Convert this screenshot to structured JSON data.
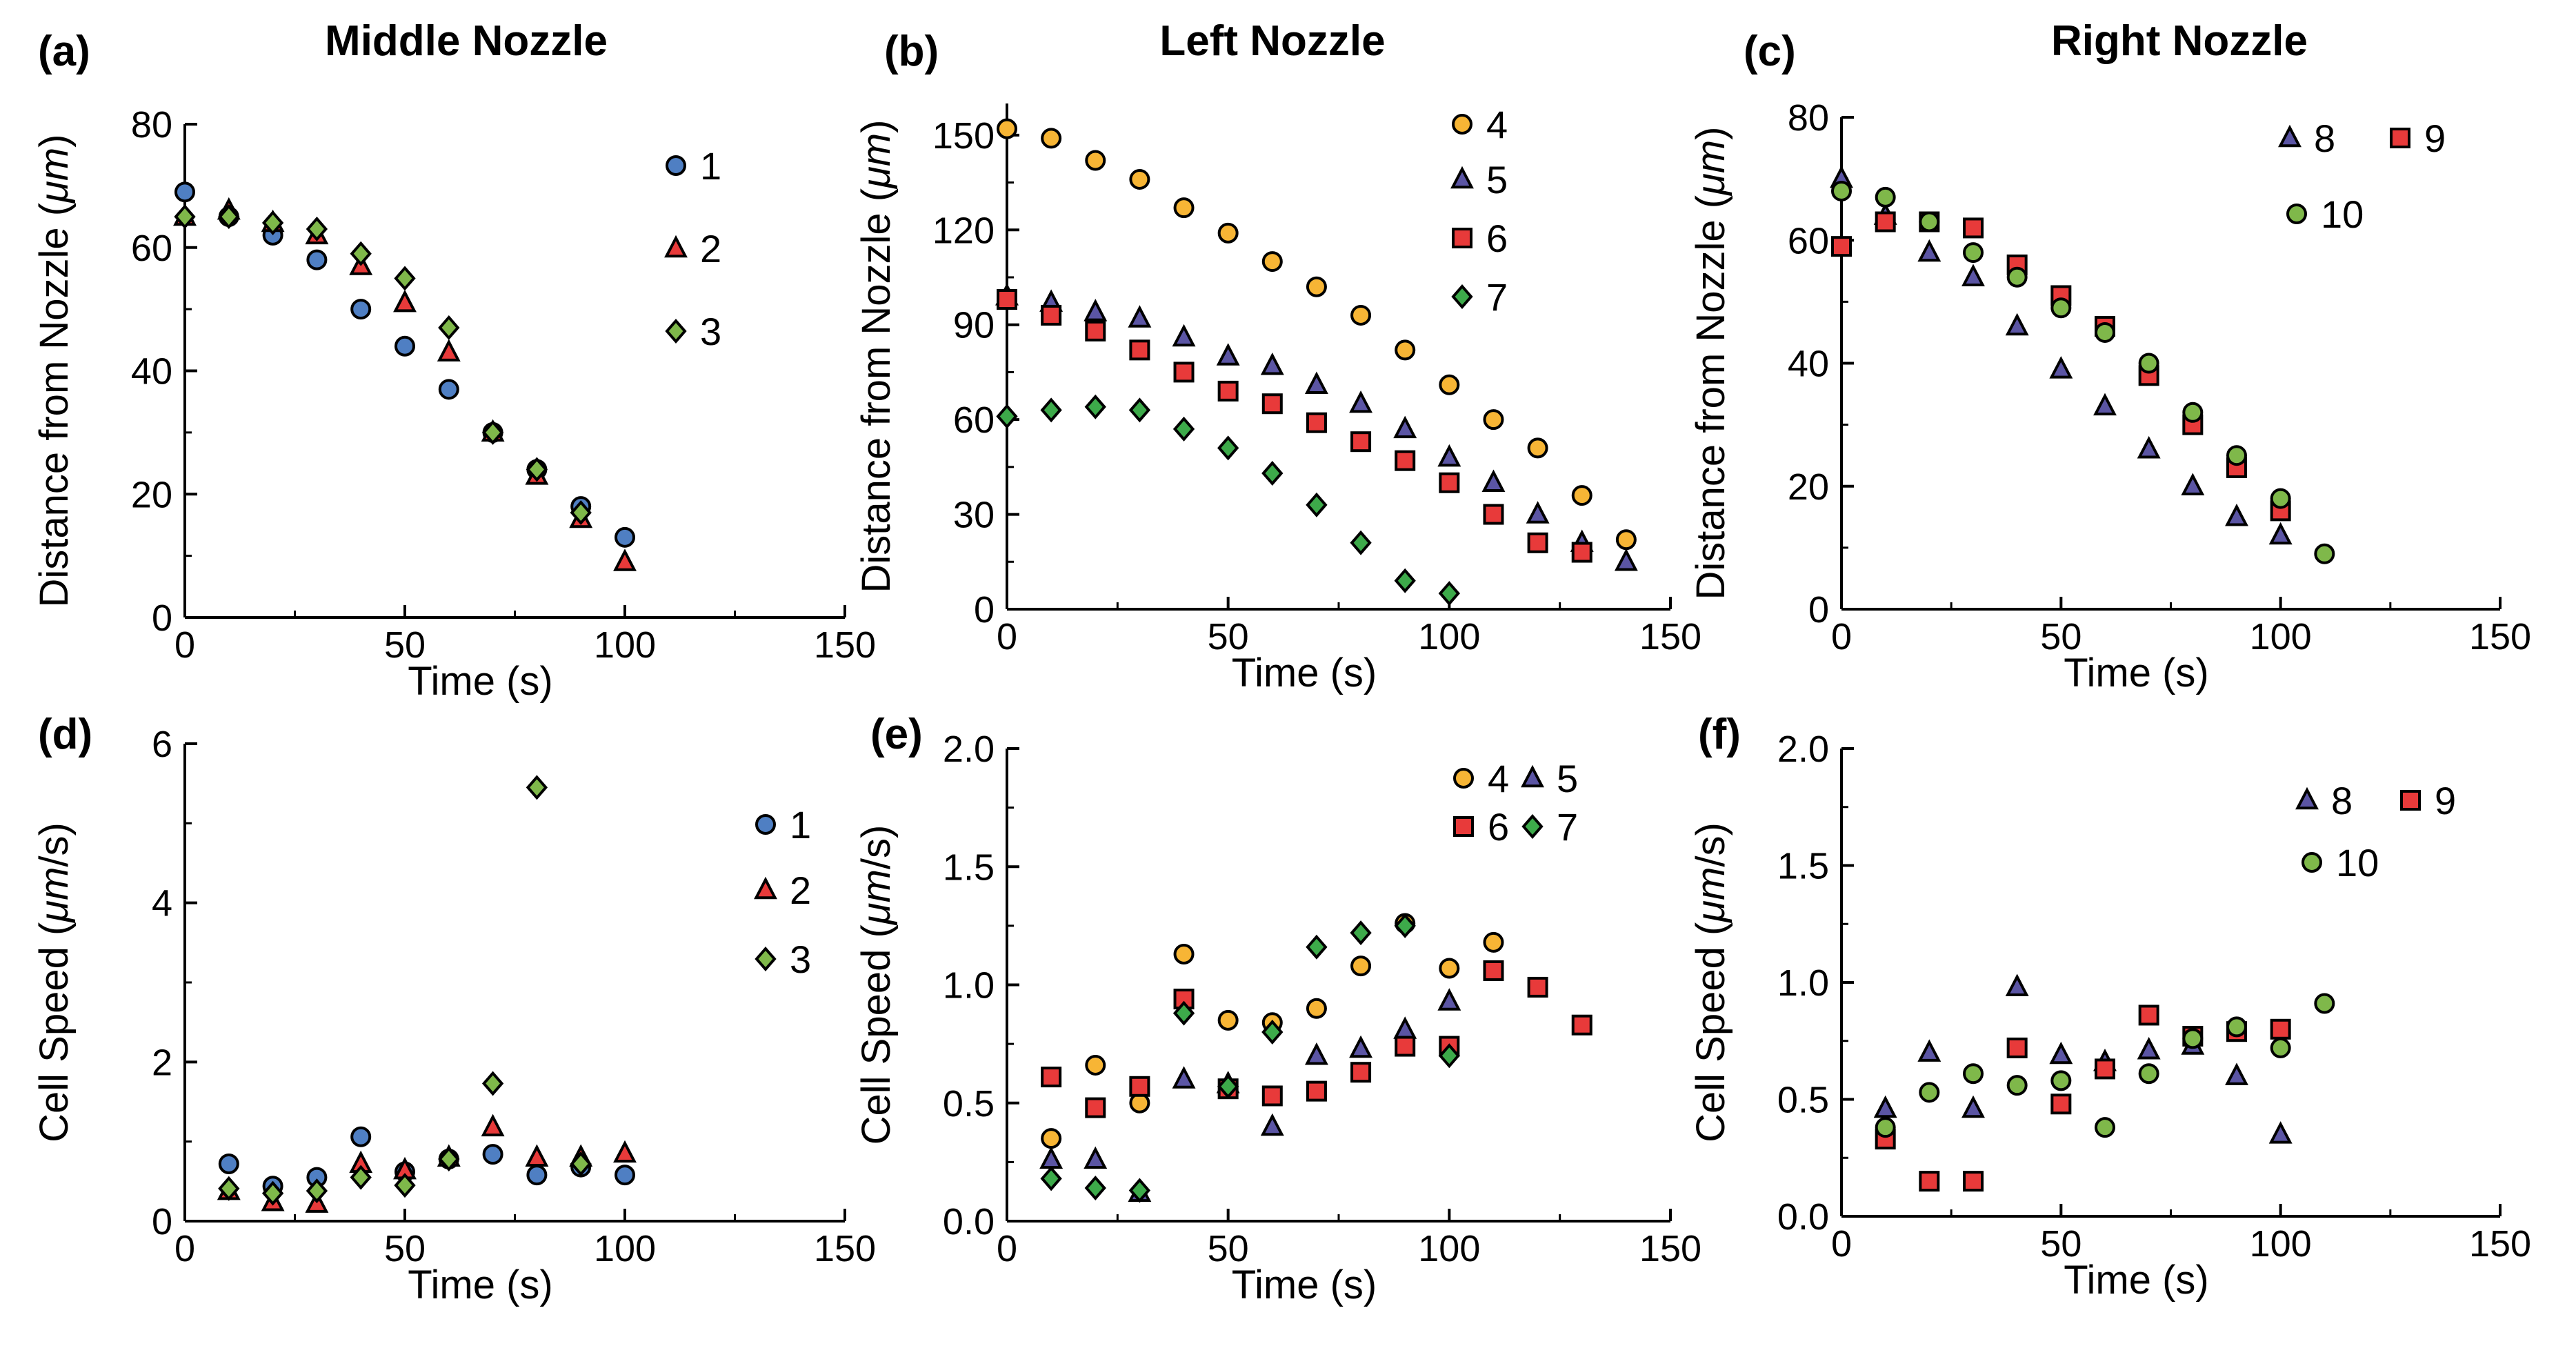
{
  "colors": {
    "series_1": "#4f7fc3",
    "series_2": "#e83a3a",
    "series_3": "#7fb84a",
    "series_4": "#f7b535",
    "series_5": "#5b55a4",
    "series_6": "#e83a3a",
    "series_7": "#3daa4a",
    "series_8": "#5b55a4",
    "series_9": "#e83a3a",
    "series_10": "#7fb84a",
    "axis": "#000000",
    "background": "#ffffff"
  },
  "chart_data": [
    {
      "id": "a",
      "panel_label": "(a)",
      "title": "Middle Nozzle",
      "type": "scatter",
      "xlabel": "Time (s)",
      "ylabel": "Distance from Nozzle (μm)",
      "ylabel_prefix": "Distance from Nozzle (",
      "ylabel_unit": "μm",
      "ylabel_suffix": ")",
      "xlim": [
        0,
        150
      ],
      "ylim": [
        0,
        80
      ],
      "xticks": [
        0,
        50,
        100,
        150
      ],
      "yticks": [
        0,
        20,
        40,
        60,
        80
      ],
      "xtick_labels": [
        "0",
        "50",
        "100",
        "150"
      ],
      "ytick_labels": [
        "0",
        "20",
        "40",
        "60",
        "80"
      ],
      "legend_position": "top-right",
      "series": [
        {
          "name": "1",
          "marker": "circle",
          "color": "#4f7fc3",
          "x": [
            0,
            10,
            20,
            30,
            40,
            50,
            60,
            70,
            80,
            90,
            100
          ],
          "y": [
            69,
            65,
            62,
            58,
            50,
            44,
            37,
            30,
            24,
            18,
            13
          ]
        },
        {
          "name": "2",
          "marker": "triangle",
          "color": "#e83a3a",
          "x": [
            0,
            10,
            20,
            30,
            40,
            50,
            60,
            70,
            80,
            90,
            100
          ],
          "y": [
            65,
            66,
            64,
            62,
            57,
            51,
            43,
            30,
            23,
            16,
            9
          ]
        },
        {
          "name": "3",
          "marker": "diamond",
          "color": "#7fb84a",
          "x": [
            0,
            10,
            20,
            30,
            40,
            50,
            60,
            70,
            80,
            90
          ],
          "y": [
            65,
            65,
            64,
            63,
            59,
            55,
            47,
            30,
            24,
            17
          ]
        }
      ]
    },
    {
      "id": "b",
      "panel_label": "(b)",
      "title": "Left Nozzle",
      "type": "scatter",
      "xlabel": "Time (s)",
      "ylabel": "Distance from Nozzle (μm)",
      "ylabel_prefix": "Distance from Nozzle (",
      "ylabel_unit": "μm",
      "ylabel_suffix": ")",
      "xlim": [
        0,
        150
      ],
      "ylim": [
        0,
        160
      ],
      "xticks": [
        0,
        50,
        100,
        150
      ],
      "yticks": [
        0,
        30,
        60,
        90,
        120,
        150
      ],
      "xtick_labels": [
        "0",
        "50",
        "100",
        "150"
      ],
      "ytick_labels": [
        "0",
        "30",
        "60",
        "90",
        "120",
        "150"
      ],
      "legend_position": "top-right",
      "series": [
        {
          "name": "4",
          "marker": "circle",
          "color": "#f7b535",
          "x": [
            0,
            10,
            20,
            30,
            40,
            50,
            60,
            70,
            80,
            90,
            100,
            110,
            120,
            130,
            140
          ],
          "y": [
            152,
            149,
            142,
            136,
            127,
            119,
            110,
            102,
            93,
            82,
            71,
            60,
            51,
            36,
            22
          ]
        },
        {
          "name": "5",
          "marker": "triangle",
          "color": "#5b55a4",
          "x": [
            0,
            10,
            20,
            30,
            40,
            50,
            60,
            70,
            80,
            90,
            100,
            110,
            120,
            130,
            140
          ],
          "y": [
            99,
            97,
            94,
            92,
            86,
            80,
            77,
            71,
            65,
            57,
            48,
            40,
            30,
            21,
            15
          ]
        },
        {
          "name": "6",
          "marker": "square",
          "color": "#e83a3a",
          "x": [
            0,
            10,
            20,
            30,
            40,
            50,
            60,
            70,
            80,
            90,
            100,
            110,
            120,
            130
          ],
          "y": [
            98,
            93,
            88,
            82,
            75,
            69,
            65,
            59,
            53,
            47,
            40,
            30,
            21,
            18
          ]
        },
        {
          "name": "7",
          "marker": "diamond",
          "color": "#3daa4a",
          "x": [
            0,
            10,
            20,
            30,
            40,
            50,
            60,
            70,
            80,
            90,
            100
          ],
          "y": [
            61,
            63,
            64,
            63,
            57,
            51,
            43,
            33,
            21,
            9,
            5
          ]
        }
      ]
    },
    {
      "id": "c",
      "panel_label": "(c)",
      "title": "Right Nozzle",
      "type": "scatter",
      "xlabel": "Time (s)",
      "ylabel": "Distance from Nozzle (μm)",
      "ylabel_prefix": "Distance from Nozzle (",
      "ylabel_unit": "μm",
      "ylabel_suffix": ")",
      "xlim": [
        0,
        150
      ],
      "ylim": [
        0,
        80
      ],
      "xticks": [
        0,
        50,
        100,
        150
      ],
      "yticks": [
        0,
        20,
        40,
        60,
        80
      ],
      "xtick_labels": [
        "0",
        "50",
        "100",
        "150"
      ],
      "ytick_labels": [
        "0",
        "20",
        "40",
        "60",
        "80"
      ],
      "legend_position": "top-right",
      "series": [
        {
          "name": "8",
          "marker": "triangle",
          "color": "#5b55a4",
          "x": [
            0,
            10,
            20,
            30,
            40,
            50,
            60,
            70,
            80,
            90,
            100
          ],
          "y": [
            70,
            64,
            58,
            54,
            46,
            39,
            33,
            26,
            20,
            15,
            12
          ]
        },
        {
          "name": "9",
          "marker": "square",
          "color": "#e83a3a",
          "x": [
            0,
            10,
            20,
            30,
            40,
            50,
            60,
            70,
            80,
            90,
            100
          ],
          "y": [
            59,
            63,
            63,
            62,
            56,
            51,
            46,
            38,
            30,
            23,
            16
          ]
        },
        {
          "name": "10",
          "marker": "circle",
          "color": "#7fb84a",
          "x": [
            0,
            10,
            20,
            30,
            40,
            50,
            60,
            70,
            80,
            90,
            100,
            110
          ],
          "y": [
            68,
            67,
            63,
            58,
            54,
            49,
            45,
            40,
            32,
            25,
            18,
            9
          ]
        }
      ]
    },
    {
      "id": "d",
      "panel_label": "(d)",
      "title": "",
      "type": "scatter",
      "xlabel": "Time (s)",
      "ylabel": "Cell Speed (μm/s)",
      "ylabel_prefix": "Cell Speed (",
      "ylabel_unit": "μm",
      "ylabel_suffix": "/s)",
      "xlim": [
        0,
        150
      ],
      "ylim": [
        0,
        6
      ],
      "xticks": [
        0,
        50,
        100,
        150
      ],
      "yticks": [
        0,
        2,
        4,
        6
      ],
      "xtick_labels": [
        "0",
        "50",
        "100",
        "150"
      ],
      "ytick_labels": [
        "0",
        "2",
        "4",
        "6"
      ],
      "legend_position": "top-right",
      "series": [
        {
          "name": "1",
          "marker": "circle",
          "color": "#4f7fc3",
          "x": [
            10,
            20,
            30,
            40,
            50,
            60,
            70,
            80,
            90,
            100
          ],
          "y": [
            0.72,
            0.44,
            0.55,
            1.06,
            0.62,
            0.78,
            0.84,
            0.58,
            0.68,
            0.58
          ]
        },
        {
          "name": "2",
          "marker": "triangle",
          "color": "#e83a3a",
          "x": [
            10,
            20,
            30,
            40,
            50,
            60,
            70,
            80,
            90,
            100
          ],
          "y": [
            0.38,
            0.24,
            0.22,
            0.72,
            0.64,
            0.8,
            1.18,
            0.8,
            0.8,
            0.85
          ]
        },
        {
          "name": "3",
          "marker": "diamond",
          "color": "#7fb84a",
          "x": [
            10,
            20,
            30,
            40,
            50,
            60,
            70,
            80,
            90
          ],
          "y": [
            0.41,
            0.35,
            0.38,
            0.55,
            0.45,
            0.78,
            1.73,
            5.45,
            0.72
          ]
        }
      ]
    },
    {
      "id": "e",
      "panel_label": "(e)",
      "title": "",
      "type": "scatter",
      "xlabel": "Time (s)",
      "ylabel": "Cell Speed (μm/s)",
      "ylabel_prefix": "Cell Speed (",
      "ylabel_unit": "μm",
      "ylabel_suffix": "/s)",
      "xlim": [
        0,
        150
      ],
      "ylim": [
        0,
        2
      ],
      "xticks": [
        0,
        50,
        100,
        150
      ],
      "yticks": [
        0,
        0.5,
        1,
        1.5,
        2
      ],
      "xtick_labels": [
        "0",
        "50",
        "100",
        "150"
      ],
      "ytick_labels": [
        "0.0",
        "0.5",
        "1.0",
        "1.5",
        "2.0"
      ],
      "legend_position": "top-right",
      "series": [
        {
          "name": "4",
          "marker": "circle",
          "color": "#f7b535",
          "x": [
            10,
            20,
            30,
            40,
            50,
            60,
            70,
            80,
            90,
            100,
            110
          ],
          "y": [
            0.35,
            0.66,
            0.5,
            1.13,
            0.85,
            0.84,
            0.9,
            1.08,
            1.26,
            1.07,
            1.18
          ]
        },
        {
          "name": "5",
          "marker": "triangle",
          "color": "#5b55a4",
          "x": [
            10,
            20,
            30,
            40,
            50,
            60,
            70,
            80,
            90,
            100
          ],
          "y": [
            0.26,
            0.26,
            0.12,
            0.6,
            0.58,
            0.4,
            0.7,
            0.73,
            0.81,
            0.93
          ]
        },
        {
          "name": "6",
          "marker": "square",
          "color": "#e83a3a",
          "x": [
            10,
            20,
            30,
            40,
            50,
            60,
            70,
            80,
            90,
            100,
            110,
            120,
            130
          ],
          "y": [
            0.61,
            0.48,
            0.57,
            0.94,
            0.56,
            0.53,
            0.55,
            0.63,
            0.74,
            0.74,
            1.06,
            0.99,
            0.83
          ]
        },
        {
          "name": "7",
          "marker": "diamond",
          "color": "#3daa4a",
          "x": [
            10,
            20,
            30,
            40,
            50,
            60,
            70,
            80,
            90,
            100
          ],
          "y": [
            0.18,
            0.14,
            0.13,
            0.88,
            0.57,
            0.8,
            1.16,
            1.22,
            1.25,
            0.7
          ]
        }
      ]
    },
    {
      "id": "f",
      "panel_label": "(f)",
      "title": "",
      "type": "scatter",
      "xlabel": "Time (s)",
      "ylabel": "Cell Speed (μm/s)",
      "ylabel_prefix": "Cell Speed (",
      "ylabel_unit": "μm",
      "ylabel_suffix": "/s)",
      "xlim": [
        0,
        150
      ],
      "ylim": [
        0,
        2
      ],
      "xticks": [
        0,
        50,
        100,
        150
      ],
      "yticks": [
        0,
        0.5,
        1,
        1.5,
        2
      ],
      "xtick_labels": [
        "0",
        "50",
        "100",
        "150"
      ],
      "ytick_labels": [
        "0.0",
        "0.5",
        "1.0",
        "1.5",
        "2.0"
      ],
      "legend_position": "top-right",
      "series": [
        {
          "name": "8",
          "marker": "triangle",
          "color": "#5b55a4",
          "x": [
            10,
            20,
            30,
            40,
            50,
            60,
            70,
            80,
            90,
            100
          ],
          "y": [
            0.46,
            0.7,
            0.46,
            0.98,
            0.69,
            0.66,
            0.71,
            0.73,
            0.6,
            0.35
          ]
        },
        {
          "name": "9",
          "marker": "square",
          "color": "#e83a3a",
          "x": [
            10,
            20,
            30,
            40,
            50,
            60,
            70,
            80,
            90,
            100
          ],
          "y": [
            0.33,
            0.15,
            0.15,
            0.72,
            0.48,
            0.63,
            0.86,
            0.77,
            0.79,
            0.8
          ]
        },
        {
          "name": "10",
          "marker": "circle",
          "color": "#7fb84a",
          "x": [
            10,
            20,
            30,
            40,
            50,
            60,
            70,
            80,
            90,
            100,
            110
          ],
          "y": [
            0.38,
            0.53,
            0.61,
            0.56,
            0.58,
            0.38,
            0.61,
            0.76,
            0.81,
            0.72,
            0.91
          ]
        }
      ]
    }
  ]
}
